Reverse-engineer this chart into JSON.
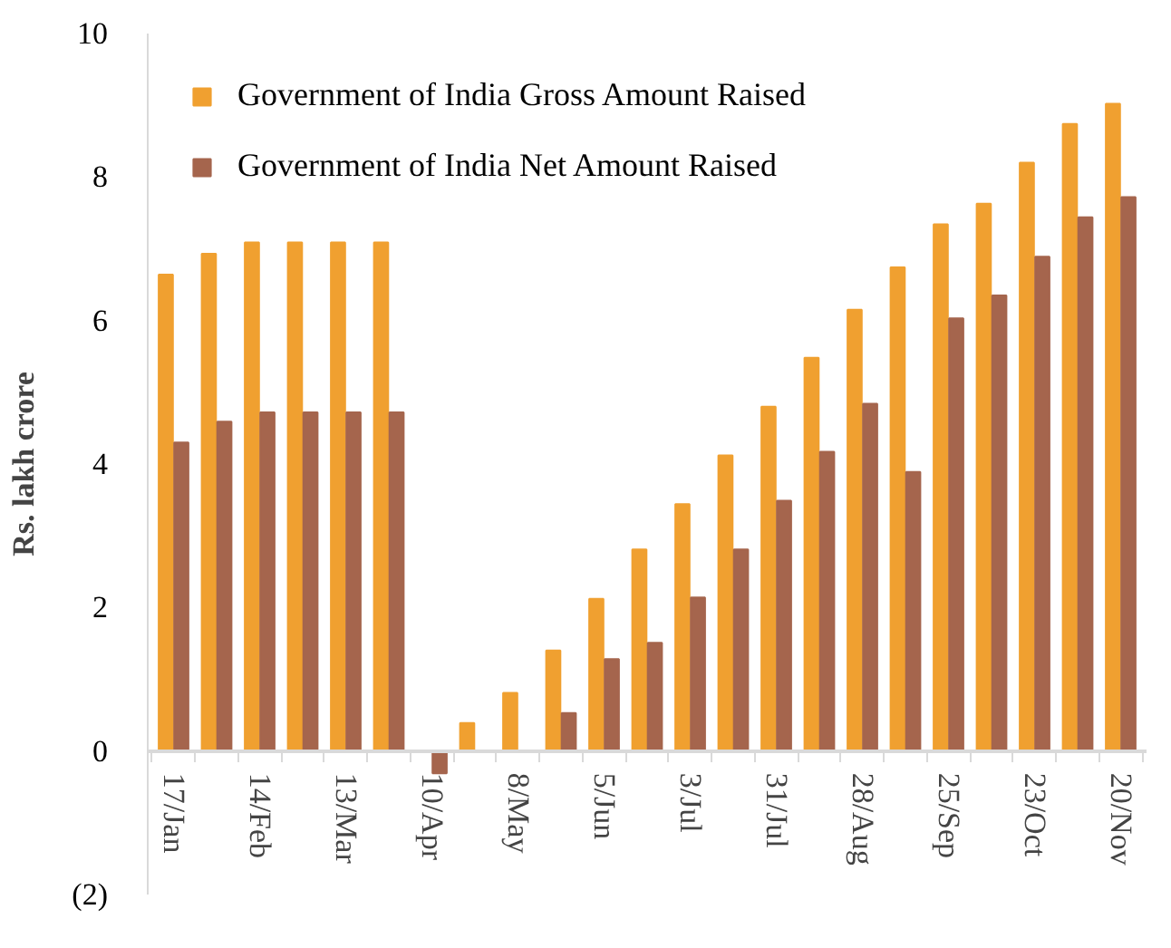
{
  "chart_data": {
    "type": "bar",
    "ylabel": "Rs. lakh crore",
    "categories": [
      "17/Jan",
      null,
      "14/Feb",
      null,
      "13/Mar",
      null,
      "10/Apr",
      null,
      "8/May",
      null,
      "5/Jun",
      null,
      "3/Jul",
      null,
      "31/Jul",
      null,
      "28/Aug",
      null,
      "25/Sep",
      null,
      "23/Oct",
      null,
      "20/Nov"
    ],
    "series": [
      {
        "name": "Government of India Gross Amount Raised",
        "color": "#f0a030",
        "values": [
          6.64,
          6.93,
          7.09,
          7.09,
          7.09,
          7.09,
          0,
          0.39,
          0.81,
          1.4,
          2.12,
          2.81,
          3.44,
          4.12,
          4.8,
          5.48,
          6.15,
          6.74,
          7.34,
          7.63,
          8.2,
          8.74,
          9.02
        ]
      },
      {
        "name": "Government of India Net Amount Raised",
        "color": "#a5654d",
        "values": [
          4.3,
          4.59,
          4.72,
          4.72,
          4.72,
          4.72,
          -0.31,
          null,
          null,
          0.53,
          1.28,
          1.51,
          2.14,
          2.81,
          3.49,
          4.17,
          4.84,
          3.89,
          6.03,
          6.35,
          6.89,
          7.44,
          7.72
        ]
      }
    ],
    "ylim": [
      -2,
      10
    ],
    "yticks": [
      {
        "value": -2,
        "label": "(2)"
      },
      0,
      2,
      4,
      6,
      8,
      10
    ],
    "grid": false,
    "legend": "top left"
  }
}
